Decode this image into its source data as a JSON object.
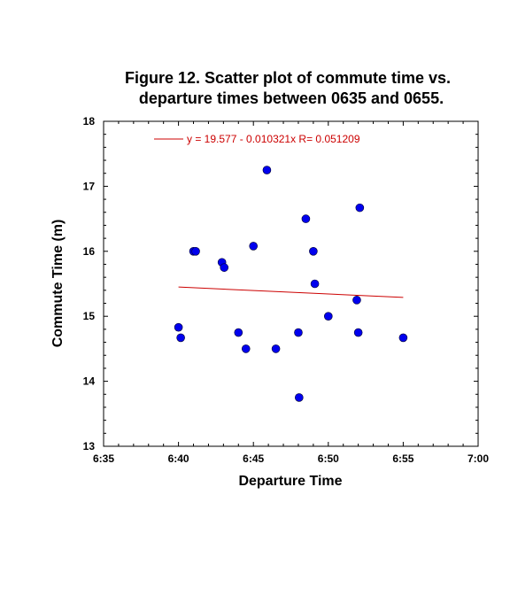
{
  "chart_data": {
    "type": "scatter",
    "title": [
      "Figure 12. Scatter plot of commute time vs.",
      "departure times between 0635 and 0655."
    ],
    "xlabel": "Departure Time",
    "ylabel": "Commute Time (m)",
    "xlim": [
      "6:35",
      "7:00"
    ],
    "ylim": [
      13,
      18
    ],
    "x_ticks": [
      "6:35",
      "6:40",
      "6:45",
      "6:50",
      "6:55",
      "7:00"
    ],
    "y_ticks": [
      13,
      14,
      15,
      16,
      17,
      18
    ],
    "grid": false,
    "point_color": "#0000ee",
    "fit_color": "#cc0000",
    "series": [
      {
        "points": [
          {
            "x": "6:40:00",
            "y": 14.83
          },
          {
            "x": "6:40:09",
            "y": 14.67
          },
          {
            "x": "6:41:00",
            "y": 16.0
          },
          {
            "x": "6:41:09",
            "y": 16.0
          },
          {
            "x": "6:42:54",
            "y": 15.83
          },
          {
            "x": "6:43:03",
            "y": 15.75
          },
          {
            "x": "6:44:00",
            "y": 14.75
          },
          {
            "x": "6:44:30",
            "y": 14.5
          },
          {
            "x": "6:45:00",
            "y": 16.08
          },
          {
            "x": "6:45:54",
            "y": 17.25
          },
          {
            "x": "6:46:30",
            "y": 14.5
          },
          {
            "x": "6:48:00",
            "y": 14.75
          },
          {
            "x": "6:48:03",
            "y": 13.75
          },
          {
            "x": "6:48:30",
            "y": 16.5
          },
          {
            "x": "6:49:00",
            "y": 16.0
          },
          {
            "x": "6:49:06",
            "y": 15.5
          },
          {
            "x": "6:50:00",
            "y": 15.0
          },
          {
            "x": "6:51:54",
            "y": 15.25
          },
          {
            "x": "6:52:00",
            "y": 14.75
          },
          {
            "x": "6:52:06",
            "y": 16.67
          },
          {
            "x": "6:55:00",
            "y": 14.67
          }
        ]
      }
    ],
    "fit": {
      "equation": "y = 19.577 - 0.010321x   R= 0.051209",
      "x": [
        "6:40",
        "6:55"
      ],
      "y": [
        15.45,
        15.29
      ]
    },
    "legend_position": "top-left"
  }
}
